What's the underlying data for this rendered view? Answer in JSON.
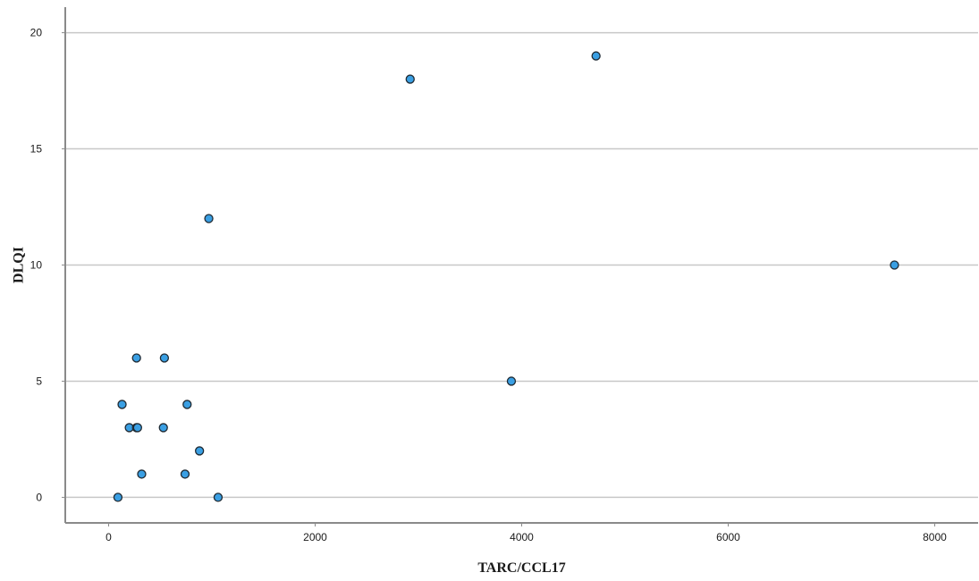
{
  "chart_data": {
    "type": "scatter",
    "xlabel": "TARC/CCL17",
    "ylabel": "DLQI",
    "xlim": [
      -420,
      8420
    ],
    "ylim": [
      -1.1,
      21.1
    ],
    "xticks": [
      0,
      2000,
      4000,
      6000,
      8000
    ],
    "yticks": [
      0,
      5,
      10,
      15,
      20
    ],
    "grid": {
      "horizontal": true,
      "vertical": false
    },
    "point_color": "#3a9fe3",
    "series": [
      {
        "points": [
          {
            "x": 90,
            "y": 0
          },
          {
            "x": 1060,
            "y": 0
          },
          {
            "x": 320,
            "y": 1
          },
          {
            "x": 740,
            "y": 1
          },
          {
            "x": 880,
            "y": 2
          },
          {
            "x": 200,
            "y": 3
          },
          {
            "x": 270,
            "y": 3
          },
          {
            "x": 280,
            "y": 3
          },
          {
            "x": 530,
            "y": 3
          },
          {
            "x": 130,
            "y": 4
          },
          {
            "x": 760,
            "y": 4
          },
          {
            "x": 270,
            "y": 6
          },
          {
            "x": 540,
            "y": 6
          },
          {
            "x": 970,
            "y": 12
          },
          {
            "x": 2920,
            "y": 18
          },
          {
            "x": 3900,
            "y": 5
          },
          {
            "x": 4720,
            "y": 19
          },
          {
            "x": 7610,
            "y": 10
          }
        ]
      }
    ]
  }
}
